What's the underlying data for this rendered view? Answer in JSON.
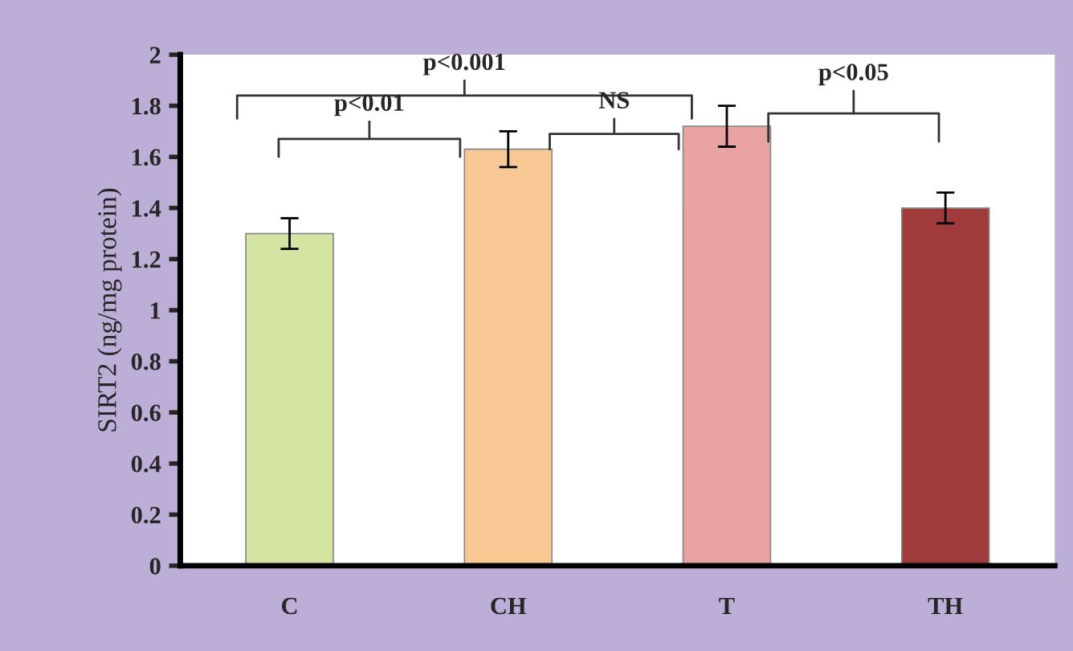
{
  "chart_data": {
    "type": "bar",
    "ylabel": "SIRT2 (ng/mg protein)",
    "categories": [
      "C",
      "CH",
      "T",
      "TH"
    ],
    "values": [
      1.3,
      1.63,
      1.72,
      1.4
    ],
    "errors": [
      0.06,
      0.07,
      0.08,
      0.06
    ],
    "colors": [
      "#d3e4a3",
      "#f9c995",
      "#e9a3a3",
      "#a03b3b"
    ],
    "ylim": [
      0,
      2
    ],
    "yticks": [
      0,
      0.2,
      0.4,
      0.6,
      0.8,
      1,
      1.2,
      1.4,
      1.6,
      1.8,
      2
    ],
    "grid": false,
    "legend": false,
    "annotations": [
      "p<0.001",
      "p<0.01",
      "NS",
      "p<0.05"
    ]
  }
}
